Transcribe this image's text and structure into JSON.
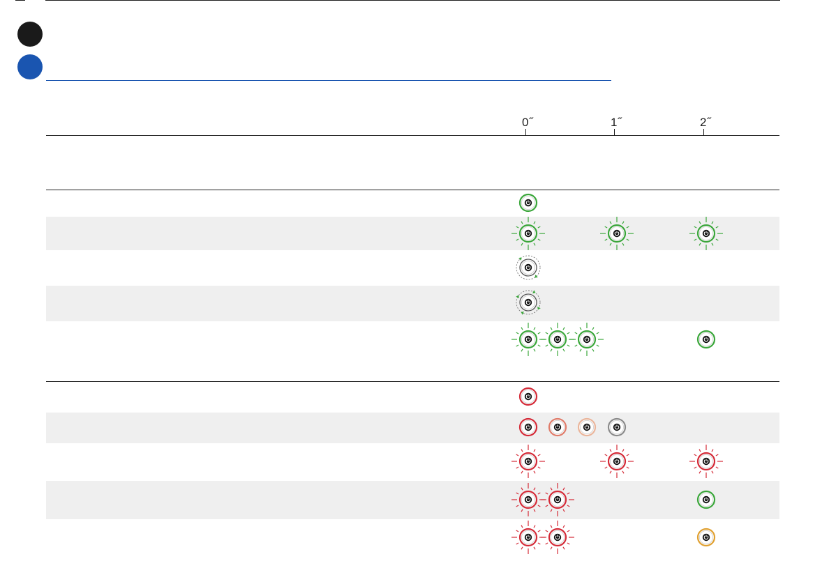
{
  "timeline": {
    "labels": [
      "0˝",
      "1˝",
      "2˝"
    ]
  },
  "colors": {
    "accent_blue": "#1a55b0",
    "section_dot": "#1a1a1a",
    "row_band": "#efefef",
    "led_green": "#3aa63a",
    "led_red": "#d42a37",
    "led_orange": "#e0a030",
    "led_salmon": "#e07c6a",
    "led_peach": "#eab59b",
    "led_gray": "#8a8a8a"
  },
  "led_icon": "power-button-led",
  "rows": [
    {
      "leds": [
        {
          "slot": 0,
          "color": "green",
          "style": "solid"
        }
      ]
    },
    {
      "leds": [
        {
          "slot": 0,
          "color": "green",
          "style": "blink"
        },
        {
          "slot": 3,
          "color": "green",
          "style": "blink"
        },
        {
          "slot": 6,
          "color": "green",
          "style": "blink"
        }
      ]
    },
    {
      "leds": [
        {
          "slot": 0,
          "color": "green",
          "style": "rotate-slow"
        }
      ]
    },
    {
      "leds": [
        {
          "slot": 0,
          "color": "green",
          "style": "rotate-fast"
        }
      ]
    },
    {
      "leds": [
        {
          "slot": 0,
          "color": "green",
          "style": "blink"
        },
        {
          "slot": 1,
          "color": "green",
          "style": "blink"
        },
        {
          "slot": 2,
          "color": "green",
          "style": "blink"
        },
        {
          "slot": 6,
          "color": "green",
          "style": "solid"
        }
      ]
    },
    {
      "leds": [
        {
          "slot": 0,
          "color": "red",
          "style": "solid"
        }
      ]
    },
    {
      "leds": [
        {
          "slot": 0,
          "color": "red",
          "style": "solid"
        },
        {
          "slot": 1,
          "color": "salmon",
          "style": "solid"
        },
        {
          "slot": 2,
          "color": "peach",
          "style": "solid"
        },
        {
          "slot": 3,
          "color": "gray",
          "style": "solid"
        }
      ]
    },
    {
      "leds": [
        {
          "slot": 0,
          "color": "red",
          "style": "blink"
        },
        {
          "slot": 3,
          "color": "red",
          "style": "blink"
        },
        {
          "slot": 6,
          "color": "red",
          "style": "blink"
        }
      ]
    },
    {
      "leds": [
        {
          "slot": 0,
          "color": "red",
          "style": "blink"
        },
        {
          "slot": 1,
          "color": "red",
          "style": "blink"
        },
        {
          "slot": 6,
          "color": "green",
          "style": "solid"
        }
      ]
    },
    {
      "leds": [
        {
          "slot": 0,
          "color": "red",
          "style": "blink"
        },
        {
          "slot": 1,
          "color": "red",
          "style": "blink"
        },
        {
          "slot": 6,
          "color": "orange",
          "style": "solid"
        }
      ]
    }
  ]
}
